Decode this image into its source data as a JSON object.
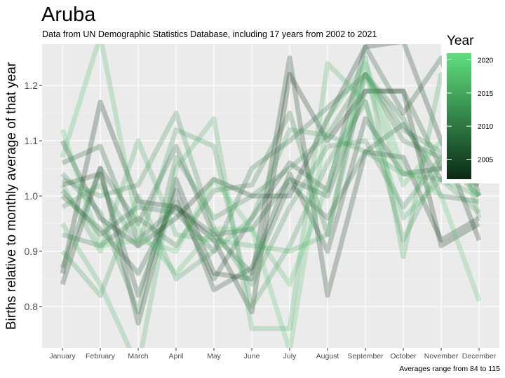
{
  "chart_data": {
    "type": "line",
    "title": "Aruba",
    "subtitle": "Data from UN Demographic Statistics Database, including 17 years from 2002 to 2021",
    "ylabel": "Births relative to monthly average of that year",
    "xlabel": "",
    "caption": "Averages range from 84 to 115",
    "categories": [
      "January",
      "February",
      "March",
      "April",
      "May",
      "June",
      "July",
      "August",
      "September",
      "October",
      "November",
      "December"
    ],
    "ylim": [
      0.725,
      1.275
    ],
    "yticks": [
      0.8,
      0.9,
      1.0,
      1.1,
      1.2
    ],
    "ytick_labels": [
      "0.8",
      "0.9",
      "1.0",
      "1.1",
      "1.2"
    ],
    "grid": true,
    "legend": {
      "title": "Year",
      "position": "right",
      "ticks": [
        2005,
        2010,
        2015,
        2020
      ],
      "range": [
        2002,
        2021
      ],
      "color_low": "#0a2a14",
      "color_high": "#5fe07f"
    },
    "series": [
      {
        "year": 2002,
        "values": [
          0.86,
          1.17,
          0.99,
          0.98,
          0.92,
          0.79,
          1.22,
          1.1,
          1.19,
          1.19,
          0.91,
          0.95
        ]
      },
      {
        "year": 2003,
        "values": [
          1.1,
          0.96,
          0.91,
          0.96,
          1.03,
          1.0,
          1.0,
          1.14,
          1.27,
          1.28,
          1.1,
          0.92
        ]
      },
      {
        "year": 2004,
        "values": [
          0.84,
          1.05,
          0.77,
          1.03,
          0.86,
          0.85,
          1.25,
          0.82,
          1.08,
          1.07,
          0.92,
          0.96
        ]
      },
      {
        "year": 2005,
        "values": [
          1.02,
          1.04,
          0.82,
          1.01,
          0.83,
          0.87,
          1.04,
          0.9,
          1.14,
          1.04,
          1.05,
          1.04
        ]
      },
      {
        "year": 2006,
        "values": [
          1.0,
          0.94,
          0.86,
          0.99,
          0.85,
          0.96,
          1.06,
          1.01,
          1.27,
          1.15,
          1.25,
          1.0
        ]
      },
      {
        "year": 2007,
        "values": [
          1.06,
          1.09,
          0.92,
          0.98,
          0.93,
          0.94,
          1.03,
          1.0,
          1.19,
          1.19,
          1.05,
          1.02
        ]
      },
      {
        "year": 2008,
        "values": [
          0.87,
          1.05,
          0.95,
          1.09,
          0.93,
          0.86,
          1.02,
          0.96,
          1.08,
          1.13,
          1.03,
          1.04
        ]
      },
      {
        "year": 2009,
        "values": [
          1.01,
          0.93,
          0.98,
          0.97,
          0.9,
          1.05,
          1.1,
          1.16,
          1.22,
          1.14,
          1.0,
          0.99
        ]
      },
      {
        "year": 2010,
        "values": [
          0.93,
          0.91,
          0.96,
          0.91,
          1.01,
          1.02,
          1.15,
          0.93,
          1.22,
          1.1,
          1.07,
          1.0
        ]
      },
      {
        "year": 2011,
        "values": [
          1.04,
          0.97,
          0.79,
          1.07,
          0.96,
          1.0,
          1.05,
          1.11,
          1.22,
          1.12,
          1.08,
          1.03
        ]
      },
      {
        "year": 2012,
        "values": [
          1.03,
          1.0,
          1.02,
          1.15,
          0.94,
          0.84,
          0.98,
          1.09,
          1.1,
          0.98,
          1.07,
          1.03
        ]
      },
      {
        "year": 2013,
        "values": [
          0.98,
          1.02,
          0.91,
          1.12,
          1.09,
          0.8,
          0.91,
          1.06,
          1.17,
          0.92,
          1.06,
          1.05
        ]
      },
      {
        "year": 2014,
        "values": [
          0.9,
          0.82,
          1.0,
          0.85,
          0.9,
          0.96,
          1.12,
          1.11,
          1.08,
          1.04,
          1.03,
          0.97
        ]
      },
      {
        "year": 2015,
        "values": [
          1.02,
          0.9,
          1.1,
          0.93,
          0.92,
          0.91,
          0.9,
          0.93,
          1.25,
          0.89,
          1.22,
          0.96
        ]
      },
      {
        "year": 2016,
        "values": [
          0.95,
          0.84,
          0.69,
          1.05,
          1.14,
          0.76,
          0.76,
          1.24,
          1.17,
          0.96,
          1.03,
          1.0
        ]
      },
      {
        "year": 2017,
        "values": [
          1.07,
          1.29,
          0.94,
          0.86,
          0.94,
          0.94,
          0.84,
          1.02,
          1.22,
          1.02,
          1.1,
          1.0
        ]
      },
      {
        "year": 2018,
        "values": [
          1.12,
          0.91,
          0.92,
          0.9,
          1.03,
          0.94,
          0.72,
          1.14,
          1.24,
          1.05,
          1.0,
          0.81
        ]
      }
    ]
  }
}
